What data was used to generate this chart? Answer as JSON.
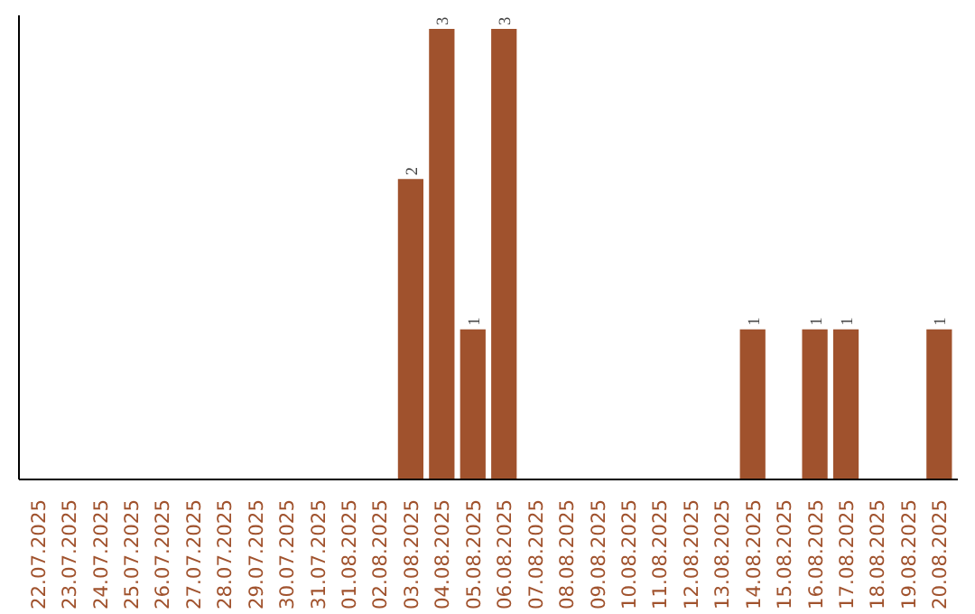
{
  "chart_data": {
    "type": "bar",
    "categories": [
      "22.07.2025",
      "23.07.2025",
      "24.07.2025",
      "25.07.2025",
      "26.07.2025",
      "27.07.2025",
      "28.07.2025",
      "29.07.2025",
      "30.07.2025",
      "31.07.2025",
      "01.08.2025",
      "02.08.2025",
      "03.08.2025",
      "04.08.2025",
      "05.08.2025",
      "06.08.2025",
      "07.08.2025",
      "08.08.2025",
      "09.08.2025",
      "10.08.2025",
      "11.08.2025",
      "12.08.2025",
      "13.08.2025",
      "14.08.2025",
      "15.08.2025",
      "16.08.2025",
      "17.08.2025",
      "18.08.2025",
      "19.08.2025",
      "20.08.2025"
    ],
    "values": [
      null,
      null,
      null,
      null,
      null,
      null,
      null,
      null,
      null,
      null,
      null,
      null,
      2,
      3,
      1,
      3,
      null,
      null,
      null,
      null,
      null,
      null,
      null,
      1,
      null,
      1,
      1,
      null,
      null,
      1
    ],
    "color": "#a0522d",
    "value_labels": [
      null,
      null,
      null,
      null,
      null,
      null,
      null,
      null,
      null,
      null,
      null,
      null,
      "2",
      "3",
      "1",
      "3",
      null,
      null,
      null,
      null,
      null,
      null,
      null,
      "1",
      null,
      "1",
      "1",
      null,
      null,
      "1"
    ],
    "tick_labels": "x",
    "grid": false
  }
}
